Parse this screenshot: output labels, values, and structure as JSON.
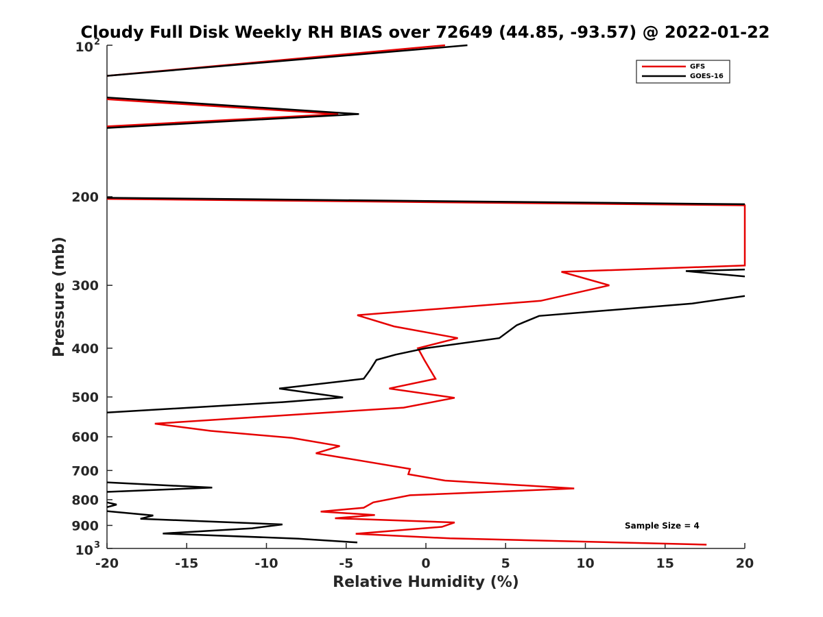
{
  "chart_data": {
    "type": "line",
    "title": "Cloudy Full Disk Weekly RH BIAS over 72649 (44.85, -93.57) @ 2022-01-22",
    "xlabel": "Relative Humidity (%)",
    "ylabel": "Pressure (mb)",
    "xlim": [
      -20,
      20
    ],
    "ylim": [
      100,
      1000
    ],
    "y_scale": "log",
    "y_reversed": true,
    "x_ticks": [
      -20,
      -15,
      -10,
      -5,
      0,
      5,
      10,
      15,
      20
    ],
    "y_ticks": [
      {
        "value": 100,
        "label": "10",
        "sup": "2"
      },
      {
        "value": 200,
        "label": "200"
      },
      {
        "value": 300,
        "label": "300"
      },
      {
        "value": 400,
        "label": "400"
      },
      {
        "value": 500,
        "label": "500"
      },
      {
        "value": 600,
        "label": "600"
      },
      {
        "value": 700,
        "label": "700"
      },
      {
        "value": 800,
        "label": "800"
      },
      {
        "value": 900,
        "label": "900"
      },
      {
        "value": 1000,
        "label": "10",
        "sup": "3"
      }
    ],
    "grid": false,
    "legend_position": "top-right",
    "annotation": "Sample Size = 4",
    "series": [
      {
        "name": "GFS",
        "color": "#e60000",
        "points": [
          [
            1.2,
            100
          ],
          [
            -20,
            115
          ],
          [
            null,
            125
          ],
          [
            -20,
            128
          ],
          [
            -5.5,
            137
          ],
          [
            -20,
            145
          ],
          [
            null,
            180
          ],
          [
            -20,
            202
          ],
          [
            20,
            208
          ],
          [
            20,
            274
          ],
          [
            8.5,
            282
          ],
          [
            11.5,
            300
          ],
          [
            7.2,
            322
          ],
          [
            -4.3,
            344
          ],
          [
            -2,
            362
          ],
          [
            2,
            382
          ],
          [
            -0.5,
            400
          ],
          [
            -0.1,
            422
          ],
          [
            0.6,
            460
          ],
          [
            -2.3,
            481
          ],
          [
            1.8,
            502
          ],
          [
            -1.4,
            525
          ],
          [
            -17,
            565
          ],
          [
            -13.5,
            584
          ],
          [
            -8.4,
            603
          ],
          [
            -5.4,
            626
          ],
          [
            -6.9,
            647
          ],
          [
            -4,
            670
          ],
          [
            -1,
            695
          ],
          [
            -1.1,
            712
          ],
          [
            1.2,
            733
          ],
          [
            9.3,
            760
          ],
          [
            -1,
            784
          ],
          [
            -3.3,
            810
          ],
          [
            -3.9,
            830
          ],
          [
            -6.6,
            845
          ],
          [
            -3.2,
            858
          ],
          [
            -5.7,
            871
          ],
          [
            1.8,
            888
          ],
          [
            1,
            906
          ],
          [
            -4.4,
            935
          ],
          [
            1.5,
            955
          ],
          [
            17.6,
            983
          ]
        ]
      },
      {
        "name": "GOES-16",
        "color": "#000000",
        "points": [
          [
            2.6,
            100
          ],
          [
            -20,
            115
          ],
          [
            null,
            125
          ],
          [
            -20,
            127
          ],
          [
            -4.2,
            137
          ],
          [
            -20,
            146
          ],
          [
            null,
            180
          ],
          [
            -20,
            201
          ],
          [
            20,
            207
          ],
          [
            null,
            270
          ],
          [
            20,
            279
          ],
          [
            16.3,
            281
          ],
          [
            20,
            288
          ],
          [
            null,
            295
          ],
          [
            20,
            315
          ],
          [
            16.7,
            326
          ],
          [
            7.1,
            345
          ],
          [
            5.7,
            360
          ],
          [
            4.6,
            382
          ],
          [
            0,
            400
          ],
          [
            -1.9,
            412
          ],
          [
            -3.1,
            422
          ],
          [
            -3.5,
            442
          ],
          [
            -3.9,
            460
          ],
          [
            -9.2,
            481
          ],
          [
            -5.2,
            501
          ],
          [
            -9,
            512
          ],
          [
            -20,
            537
          ],
          [
            null,
            700
          ],
          [
            -20,
            739
          ],
          [
            -13.4,
            757
          ],
          [
            -20,
            772
          ],
          [
            null,
            800
          ],
          [
            -20,
            810
          ],
          [
            -19.4,
            818
          ],
          [
            -20,
            828
          ],
          [
            null,
            840
          ],
          [
            -20,
            843
          ],
          [
            -17.1,
            860
          ],
          [
            -17.9,
            873
          ],
          [
            -9,
            896
          ],
          [
            -10.9,
            912
          ],
          [
            -16.5,
            934
          ],
          [
            -8,
            956
          ],
          [
            -4.3,
            973
          ]
        ]
      }
    ]
  }
}
